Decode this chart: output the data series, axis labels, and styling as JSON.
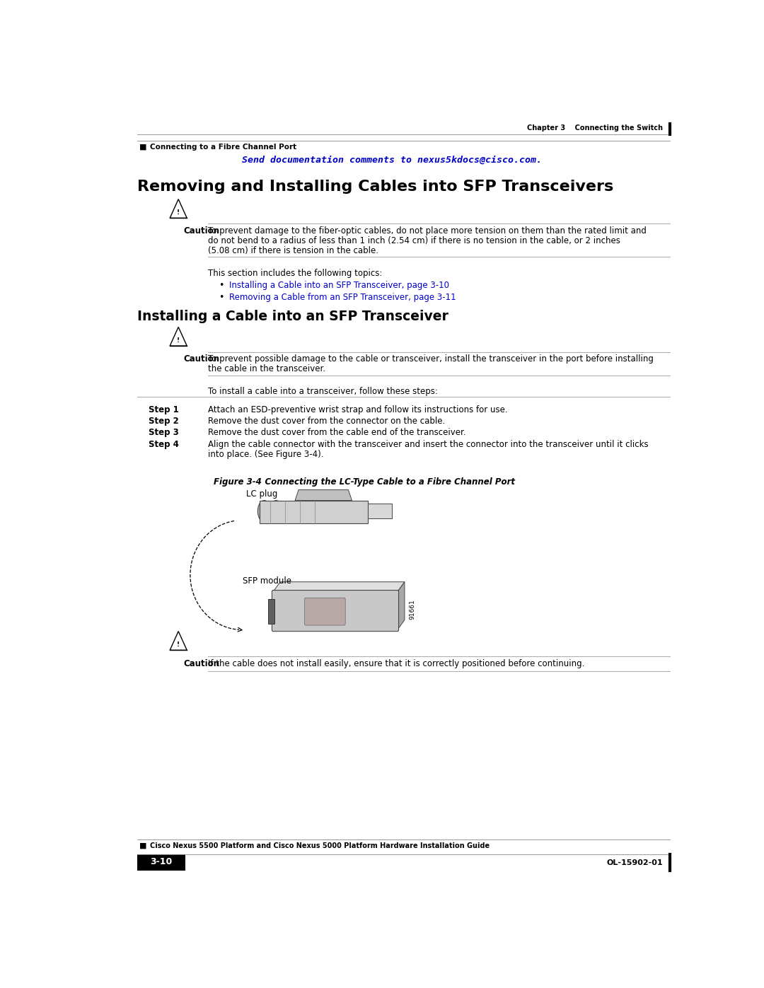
{
  "bg_color": "#ffffff",
  "page_width": 10.8,
  "page_height": 13.97,
  "header_chapter": "Chapter 3    Connecting the Switch",
  "header_section": "Connecting to a Fibre Channel Port",
  "footer_guide": "Cisco Nexus 5500 Platform and Cisco Nexus 5000 Platform Hardware Installation Guide",
  "footer_page": "3-10",
  "footer_doc": "OL-15902-01",
  "send_docs_text": "Send documentation comments to nexus5kdocs@cisco.com.",
  "title1": "Removing and Installing Cables into SFP Transceivers",
  "caution1_line1": "To prevent damage to the fiber-optic cables, do not place more tension on them than the rated limit and",
  "caution1_line2": "do not bend to a radius of less than 1 inch (2.54 cm) if there is no tension in the cable, or 2 inches",
  "caution1_line3": "(5.08 cm) if there is tension in the cable.",
  "topics_intro": "This section includes the following topics:",
  "bullet1": "Installing a Cable into an SFP Transceiver, page 3-10",
  "bullet2": "Removing a Cable from an SFP Transceiver, page 3-11",
  "title2": "Installing a Cable into an SFP Transceiver",
  "caution2_line1": "To prevent possible damage to the cable or transceiver, install the transceiver in the port before installing",
  "caution2_line2": "the cable in the transceiver.",
  "install_intro": "To install a cable into a transceiver, follow these steps:",
  "step1_label": "Step 1",
  "step1_text": "Attach an ESD-preventive wrist strap and follow its instructions for use.",
  "step2_label": "Step 2",
  "step2_text": "Remove the dust cover from the connector on the cable.",
  "step3_label": "Step 3",
  "step3_text": "Remove the dust cover from the cable end of the transceiver.",
  "step4_label": "Step 4",
  "step4_line1": "Align the cable connector with the transceiver and insert the connector into the transceiver until it clicks",
  "step4_line2": "into place. (See Figure 3-4).",
  "fig_caption_bold": "Figure 3-4",
  "fig_caption_rest": "    Connecting the LC-Type Cable to a Fibre Channel Port",
  "fig_label1": "LC plug",
  "fig_label2": "SFP module",
  "fig_number": "91661",
  "caution3_text": "If the cable does not install easily, ensure that it is correctly positioned before continuing.",
  "link_color": "#0000CC",
  "text_color": "#000000"
}
